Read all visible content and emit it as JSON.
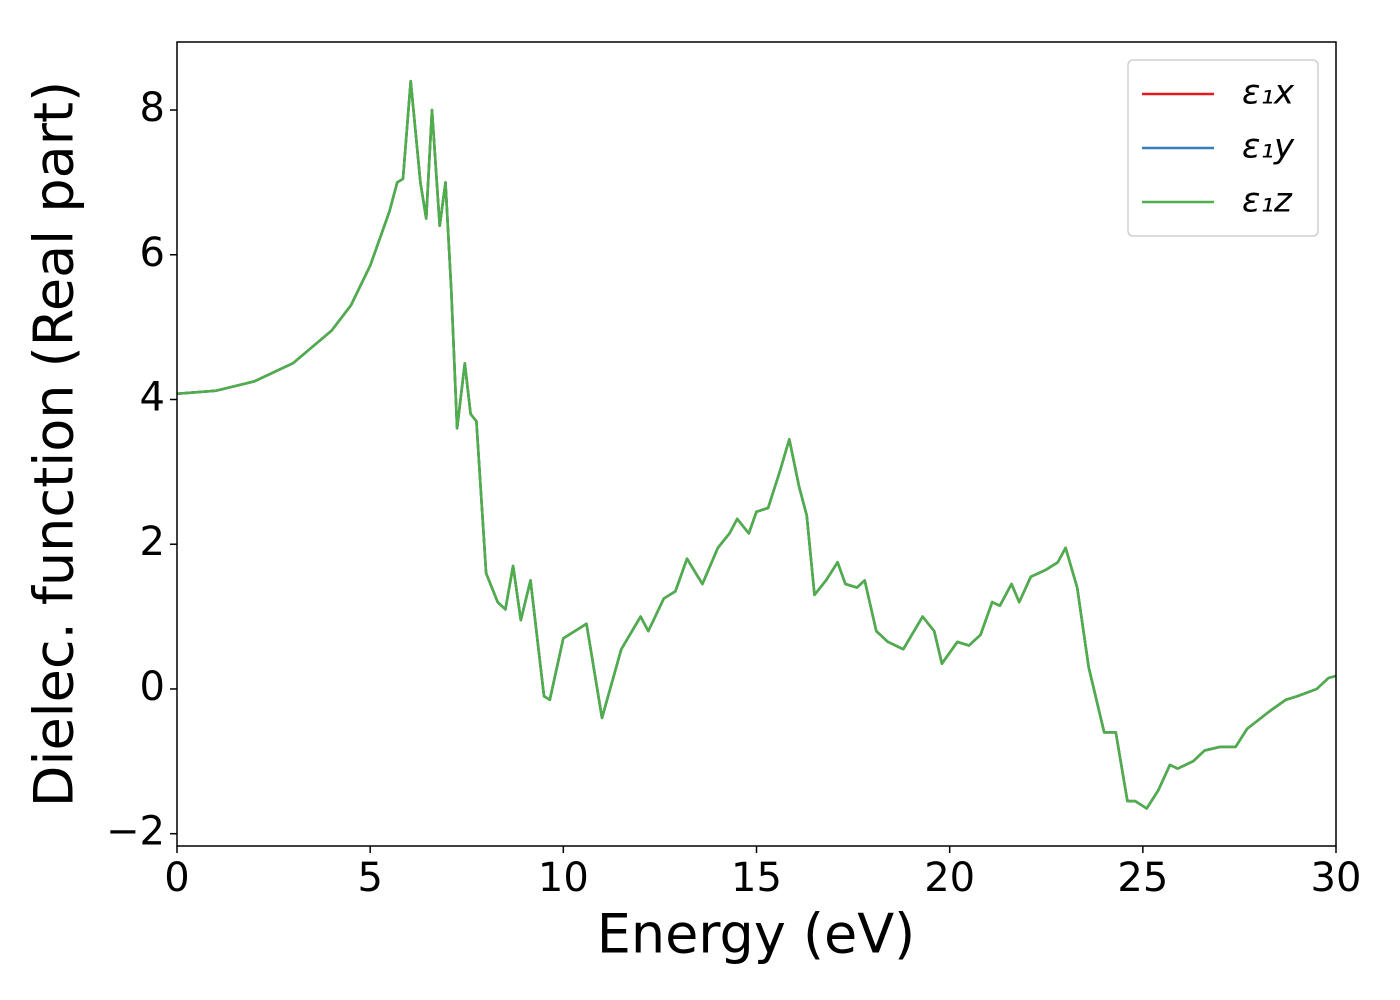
{
  "chart_data": {
    "type": "line",
    "xlabel": "Energy (eV)",
    "ylabel": "Dielec. function (Real part)",
    "x": [
      0,
      1,
      2,
      3,
      4,
      4.5,
      5,
      5.5,
      5.7,
      5.85,
      6.05,
      6.3,
      6.45,
      6.6,
      6.8,
      6.95,
      7.1,
      7.25,
      7.45,
      7.6,
      7.75,
      8.0,
      8.3,
      8.5,
      8.7,
      8.9,
      9.15,
      9.5,
      9.65,
      10.0,
      10.3,
      10.6,
      11.0,
      11.5,
      12.0,
      12.2,
      12.6,
      12.9,
      13.2,
      13.6,
      14.0,
      14.3,
      14.5,
      14.8,
      15.0,
      15.3,
      15.6,
      15.85,
      16.1,
      16.3,
      16.5,
      16.8,
      17.1,
      17.3,
      17.6,
      17.8,
      18.1,
      18.4,
      18.8,
      19.3,
      19.6,
      19.8,
      20.2,
      20.5,
      20.8,
      21.1,
      21.3,
      21.6,
      21.8,
      22.1,
      22.5,
      22.8,
      23.0,
      23.3,
      23.6,
      24.0,
      24.3,
      24.6,
      24.8,
      25.1,
      25.4,
      25.7,
      25.9,
      26.3,
      26.6,
      27.0,
      27.4,
      27.7,
      28.3,
      28.7,
      29.0,
      29.5,
      29.8,
      30
    ],
    "series": [
      {
        "name": "ε₁x",
        "color": "#e41a1c",
        "values": [
          4.08,
          4.12,
          4.25,
          4.5,
          4.95,
          5.3,
          5.85,
          6.6,
          7.0,
          7.05,
          8.4,
          7.0,
          6.5,
          8.0,
          6.4,
          7.0,
          5.5,
          3.6,
          4.5,
          3.8,
          3.7,
          1.6,
          1.2,
          1.1,
          1.7,
          0.95,
          1.5,
          -0.1,
          -0.15,
          0.7,
          0.8,
          0.9,
          -0.4,
          0.55,
          1.0,
          0.8,
          1.25,
          1.35,
          1.8,
          1.45,
          1.95,
          2.15,
          2.35,
          2.15,
          2.45,
          2.5,
          3.0,
          3.45,
          2.8,
          2.4,
          1.3,
          1.5,
          1.75,
          1.45,
          1.4,
          1.5,
          0.8,
          0.65,
          0.55,
          1.0,
          0.8,
          0.35,
          0.65,
          0.6,
          0.75,
          1.2,
          1.15,
          1.45,
          1.2,
          1.55,
          1.65,
          1.75,
          1.95,
          1.4,
          0.3,
          -0.6,
          -0.6,
          -1.55,
          -1.55,
          -1.65,
          -1.4,
          -1.05,
          -1.1,
          -1.0,
          -0.85,
          -0.8,
          -0.8,
          -0.55,
          -0.3,
          -0.15,
          -0.1,
          0.0,
          0.15,
          0.18
        ]
      },
      {
        "name": "ε₁y",
        "color": "#377eb8",
        "values": [
          4.08,
          4.12,
          4.25,
          4.5,
          4.95,
          5.3,
          5.85,
          6.6,
          7.0,
          7.05,
          8.4,
          7.0,
          6.5,
          8.0,
          6.4,
          7.0,
          5.5,
          3.6,
          4.5,
          3.8,
          3.7,
          1.6,
          1.2,
          1.1,
          1.7,
          0.95,
          1.5,
          -0.1,
          -0.15,
          0.7,
          0.8,
          0.9,
          -0.4,
          0.55,
          1.0,
          0.8,
          1.25,
          1.35,
          1.8,
          1.45,
          1.95,
          2.15,
          2.35,
          2.15,
          2.45,
          2.5,
          3.0,
          3.45,
          2.8,
          2.4,
          1.3,
          1.5,
          1.75,
          1.45,
          1.4,
          1.5,
          0.8,
          0.65,
          0.55,
          1.0,
          0.8,
          0.35,
          0.65,
          0.6,
          0.75,
          1.2,
          1.15,
          1.45,
          1.2,
          1.55,
          1.65,
          1.75,
          1.95,
          1.4,
          0.3,
          -0.6,
          -0.6,
          -1.55,
          -1.55,
          -1.65,
          -1.4,
          -1.05,
          -1.1,
          -1.0,
          -0.85,
          -0.8,
          -0.8,
          -0.55,
          -0.3,
          -0.15,
          -0.1,
          0.0,
          0.15,
          0.18
        ]
      },
      {
        "name": "ε₁z",
        "color": "#4daf4a",
        "values": [
          4.08,
          4.12,
          4.25,
          4.5,
          4.95,
          5.3,
          5.85,
          6.6,
          7.0,
          7.05,
          8.4,
          7.0,
          6.5,
          8.0,
          6.4,
          7.0,
          5.5,
          3.6,
          4.5,
          3.8,
          3.7,
          1.6,
          1.2,
          1.1,
          1.7,
          0.95,
          1.5,
          -0.1,
          -0.15,
          0.7,
          0.8,
          0.9,
          -0.4,
          0.55,
          1.0,
          0.8,
          1.25,
          1.35,
          1.8,
          1.45,
          1.95,
          2.15,
          2.35,
          2.15,
          2.45,
          2.5,
          3.0,
          3.45,
          2.8,
          2.4,
          1.3,
          1.5,
          1.75,
          1.45,
          1.4,
          1.5,
          0.8,
          0.65,
          0.55,
          1.0,
          0.8,
          0.35,
          0.65,
          0.6,
          0.75,
          1.2,
          1.15,
          1.45,
          1.2,
          1.55,
          1.65,
          1.75,
          1.95,
          1.4,
          0.3,
          -0.6,
          -0.6,
          -1.55,
          -1.55,
          -1.65,
          -1.4,
          -1.05,
          -1.1,
          -1.0,
          -0.85,
          -0.8,
          -0.8,
          -0.55,
          -0.3,
          -0.15,
          -0.1,
          0.0,
          0.15,
          0.18
        ]
      }
    ],
    "xlim": [
      0,
      30
    ],
    "xticks": [
      0,
      5,
      10,
      15,
      20,
      25,
      30
    ],
    "ylim": [
      -2.17,
      8.94
    ],
    "yticks": [
      {
        "value": -2,
        "label": "−2"
      },
      0,
      2,
      4,
      6,
      8
    ],
    "legend": "upper right",
    "grid": false
  }
}
